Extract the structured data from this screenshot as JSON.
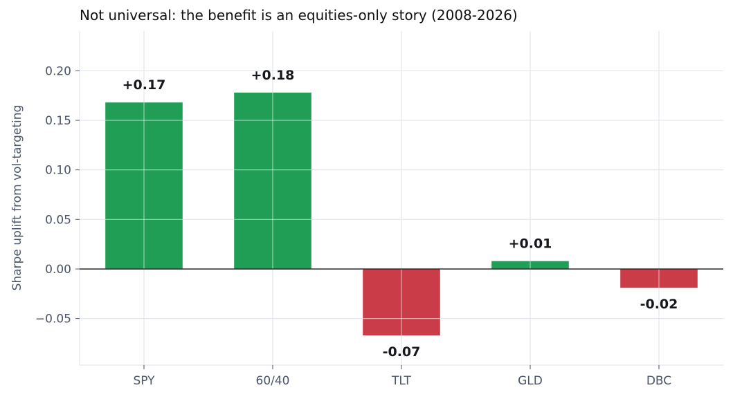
{
  "chart_data": {
    "type": "bar",
    "title": "Not universal: the benefit is an equities-only story (2008-2026)",
    "xlabel": "",
    "ylabel": "Sharpe uplift from vol-targeting",
    "categories": [
      "SPY",
      "60/40",
      "TLT",
      "GLD",
      "DBC"
    ],
    "values": [
      0.168,
      0.178,
      -0.067,
      0.008,
      -0.019
    ],
    "data_labels": [
      "+0.17",
      "+0.18",
      "-0.07",
      "+0.01",
      "-0.02"
    ],
    "ylim": [
      -0.097,
      0.24
    ],
    "yticks": [
      -0.05,
      0.0,
      0.05,
      0.1,
      0.15,
      0.2
    ],
    "ytick_labels": [
      "−0.05",
      "0.00",
      "0.05",
      "0.10",
      "0.15",
      "0.20"
    ],
    "grid": true,
    "colors": {
      "positive": "#209e55",
      "negative": "#c93c48",
      "grid": "#e3e6ec",
      "zero_line": "#2b2b2b",
      "axis_text": "#4a5468"
    }
  }
}
